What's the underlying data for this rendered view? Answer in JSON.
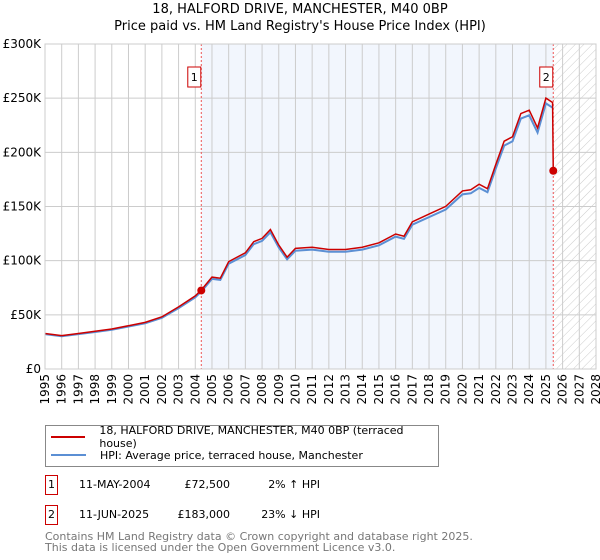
{
  "chart_data": {
    "type": "line",
    "title": "18, HALFORD DRIVE, MANCHESTER, M40 0BP",
    "subtitle": "Price paid vs. HM Land Registry's House Price Index (HPI)",
    "xlim": [
      1995,
      2028
    ],
    "ylim": [
      0,
      300000
    ],
    "x_ticks": [
      "1995",
      "1996",
      "1997",
      "1998",
      "1999",
      "2000",
      "2001",
      "2002",
      "2003",
      "2004",
      "2005",
      "2006",
      "2007",
      "2008",
      "2009",
      "2010",
      "2011",
      "2012",
      "2013",
      "2014",
      "2015",
      "2016",
      "2017",
      "2018",
      "2019",
      "2020",
      "2021",
      "2022",
      "2023",
      "2024",
      "2025",
      "2026",
      "2027",
      "2028"
    ],
    "y_ticks": [
      {
        "v": 0,
        "label": "£0"
      },
      {
        "v": 50000,
        "label": "£50K"
      },
      {
        "v": 100000,
        "label": "£100K"
      },
      {
        "v": 150000,
        "label": "£150K"
      },
      {
        "v": 200000,
        "label": "£200K"
      },
      {
        "v": 250000,
        "label": "£250K"
      },
      {
        "v": 300000,
        "label": "£300K"
      }
    ],
    "grid": true,
    "series": [
      {
        "name": "HPI: Average price, terraced house, Manchester",
        "color": "#5b8fd4",
        "x": [
          1995,
          1996,
          1997,
          1998,
          1999,
          2000,
          2001,
          2002,
          2003,
          2004,
          2004.4,
          2005,
          2005.5,
          2006,
          2007,
          2007.5,
          2008,
          2008.5,
          2009,
          2009.5,
          2010,
          2011,
          2012,
          2013,
          2014,
          2015,
          2016,
          2016.5,
          2017,
          2018,
          2019,
          2020,
          2020.5,
          2021,
          2021.5,
          2022,
          2022.5,
          2023,
          2023.5,
          2024,
          2024.5,
          2025,
          2025.4
        ],
        "y": [
          31000,
          29000,
          31000,
          33000,
          35000,
          38000,
          41000,
          46000,
          55000,
          65000,
          71000,
          82000,
          81000,
          96000,
          104000,
          114000,
          117000,
          125000,
          111000,
          100000,
          108000,
          109000,
          107000,
          107000,
          109000,
          113000,
          121000,
          119000,
          132000,
          139000,
          146000,
          160000,
          161000,
          166000,
          162000,
          184000,
          205000,
          209000,
          230000,
          233000,
          217000,
          244000,
          240000
        ]
      },
      {
        "name": "18, HALFORD DRIVE, MANCHESTER, M40 0BP (terraced house)",
        "color": "#cc0000"
      }
    ],
    "sales": [
      {
        "id": "1",
        "date": "11-MAY-2004",
        "x": 2004.36,
        "price": "£72,500",
        "value": 72500,
        "hpi": "2% ↑ HPI"
      },
      {
        "id": "2",
        "date": "11-JUN-2025",
        "x": 2025.44,
        "price": "£183,000",
        "value": 183000,
        "hpi": "23% ↓ HPI"
      }
    ]
  },
  "footer": [
    "Contains HM Land Registry data © Crown copyright and database right 2025.",
    "This data is licensed under the Open Government Licence v3.0."
  ]
}
